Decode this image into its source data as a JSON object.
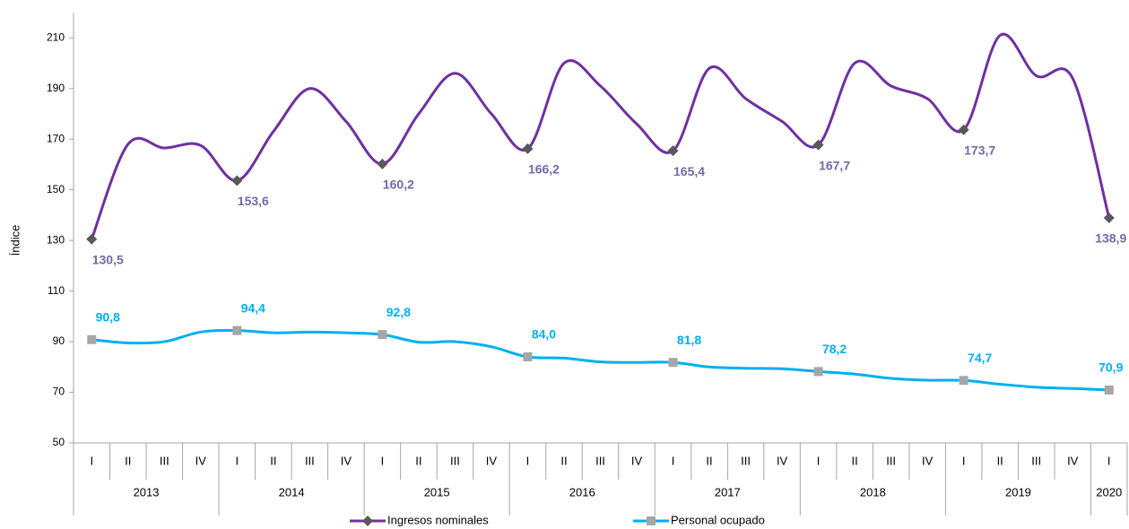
{
  "chart_data": {
    "type": "line",
    "ylabel": "Índice",
    "categories": [
      "I",
      "II",
      "III",
      "IV",
      "I",
      "II",
      "III",
      "IV",
      "I",
      "II",
      "III",
      "IV",
      "I",
      "II",
      "III",
      "IV",
      "I",
      "II",
      "III",
      "IV",
      "I",
      "II",
      "III",
      "IV",
      "I",
      "II",
      "III",
      "IV",
      "I"
    ],
    "years": [
      "2013",
      "2014",
      "2015",
      "2016",
      "2017",
      "2018",
      "2019",
      "2020"
    ],
    "ylim": [
      50,
      220
    ],
    "yticks": [
      50,
      70,
      90,
      110,
      130,
      150,
      170,
      190,
      210
    ],
    "legend": "bottom",
    "series": [
      {
        "name": "Ingresos nominales",
        "color": "#7030a0",
        "marker": "diamond",
        "marker_color": "#595959",
        "label_color": "#7469a8",
        "values": [
          130.5,
          168,
          166.5,
          167.5,
          153.6,
          173,
          190,
          177,
          160.2,
          180,
          196,
          180,
          166.2,
          200,
          191,
          176,
          165.4,
          198,
          186,
          177,
          167.7,
          200,
          191,
          186,
          173.7,
          211,
          195,
          194,
          138.9
        ],
        "value_labels": [
          "130,5",
          null,
          null,
          null,
          "153,6",
          null,
          null,
          null,
          "160,2",
          null,
          null,
          null,
          "166,2",
          null,
          null,
          null,
          "165,4",
          null,
          null,
          null,
          "167,7",
          null,
          null,
          null,
          "173,7",
          null,
          null,
          null,
          "138,9"
        ]
      },
      {
        "name": "Personal ocupado",
        "color": "#00b0f0",
        "marker": "square",
        "marker_color": "#a6a6a6",
        "label_color": "#00b0f0",
        "values": [
          90.8,
          89.5,
          90,
          93.8,
          94.4,
          93.5,
          93.8,
          93.5,
          92.8,
          89.8,
          90,
          88,
          84.0,
          83.5,
          82,
          81.8,
          81.8,
          80,
          79.5,
          79.3,
          78.2,
          77.2,
          75.5,
          74.8,
          74.7,
          73.2,
          72,
          71.5,
          70.9
        ],
        "value_labels": [
          "90,8",
          null,
          null,
          null,
          "94,4",
          null,
          null,
          null,
          "92,8",
          null,
          null,
          null,
          "84,0",
          null,
          null,
          null,
          "81,8",
          null,
          null,
          null,
          "78,2",
          null,
          null,
          null,
          "74,7",
          null,
          null,
          null,
          "70,9"
        ]
      }
    ]
  }
}
